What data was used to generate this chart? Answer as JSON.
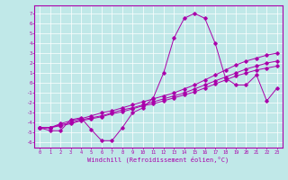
{
  "xlabel": "Windchill (Refroidissement éolien,°C)",
  "x_ticks": [
    0,
    1,
    2,
    3,
    4,
    5,
    6,
    7,
    8,
    9,
    10,
    11,
    12,
    13,
    14,
    15,
    16,
    17,
    18,
    19,
    20,
    21,
    22,
    23
  ],
  "ylim": [
    -6.5,
    7.8
  ],
  "xlim": [
    -0.5,
    23.5
  ],
  "yticks": [
    7,
    6,
    5,
    4,
    3,
    2,
    1,
    0,
    -1,
    -2,
    -3,
    -4,
    -5,
    -6
  ],
  "background_color": "#c0e8e8",
  "line_color": "#aa00aa",
  "series1_x": [
    0,
    1,
    2,
    3,
    4,
    5,
    6,
    7,
    8,
    9,
    10,
    11,
    12,
    13,
    14,
    15,
    16,
    17,
    18,
    19,
    20,
    21,
    22,
    23
  ],
  "series1_y": [
    -4.5,
    -4.8,
    -4.8,
    -3.7,
    -3.5,
    -4.7,
    -5.8,
    -5.8,
    -4.5,
    -3.0,
    -2.5,
    -1.5,
    1.0,
    4.5,
    6.5,
    7.0,
    6.5,
    4.0,
    0.5,
    -0.2,
    -0.2,
    0.8,
    -1.8,
    -0.5
  ],
  "series2_x": [
    0,
    1,
    2,
    3,
    4,
    5,
    6,
    7,
    8,
    9,
    10,
    11,
    12,
    13,
    14,
    15,
    16,
    17,
    18,
    19,
    20,
    21,
    22,
    23
  ],
  "series2_y": [
    -4.5,
    -4.5,
    -4.3,
    -4.1,
    -3.8,
    -3.6,
    -3.4,
    -3.1,
    -2.9,
    -2.6,
    -2.3,
    -2.1,
    -1.8,
    -1.5,
    -1.2,
    -0.9,
    -0.5,
    -0.1,
    0.3,
    0.7,
    1.0,
    1.3,
    1.5,
    1.7
  ],
  "series3_x": [
    0,
    1,
    2,
    3,
    4,
    5,
    6,
    7,
    8,
    9,
    10,
    11,
    12,
    13,
    14,
    15,
    16,
    17,
    18,
    19,
    20,
    21,
    22,
    23
  ],
  "series3_y": [
    -4.5,
    -4.5,
    -4.2,
    -4.0,
    -3.7,
    -3.5,
    -3.3,
    -3.0,
    -2.7,
    -2.5,
    -2.2,
    -1.9,
    -1.6,
    -1.3,
    -1.0,
    -0.6,
    -0.2,
    0.2,
    0.6,
    1.0,
    1.4,
    1.7,
    2.0,
    2.2
  ],
  "series4_x": [
    0,
    1,
    2,
    3,
    4,
    5,
    6,
    7,
    8,
    9,
    10,
    11,
    12,
    13,
    14,
    15,
    16,
    17,
    18,
    19,
    20,
    21,
    22,
    23
  ],
  "series4_y": [
    -4.5,
    -4.5,
    -4.1,
    -3.8,
    -3.6,
    -3.3,
    -3.0,
    -2.8,
    -2.5,
    -2.2,
    -1.9,
    -1.6,
    -1.3,
    -1.0,
    -0.6,
    -0.2,
    0.3,
    0.8,
    1.3,
    1.8,
    2.2,
    2.5,
    2.8,
    3.0
  ]
}
